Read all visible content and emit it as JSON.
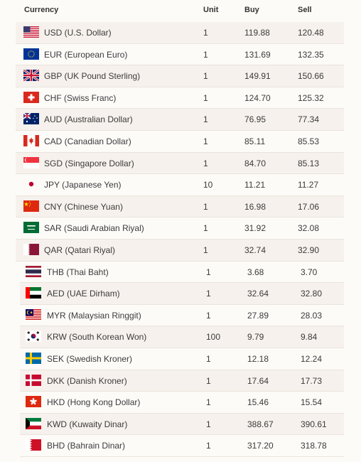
{
  "table": {
    "headers": {
      "currency": "Currency",
      "unit": "Unit",
      "buy": "Buy",
      "sell": "Sell"
    },
    "rows": [
      {
        "flag": "us-flag-icon",
        "name": "USD (U.S. Dollar)",
        "unit": "1",
        "buy": "119.88",
        "sell": "120.48"
      },
      {
        "flag": "eu-flag-icon",
        "name": "EUR (European Euro)",
        "unit": "1",
        "buy": "131.69",
        "sell": "132.35"
      },
      {
        "flag": "gb-flag-icon",
        "name": "GBP (UK Pound Sterling)",
        "unit": "1",
        "buy": "149.91",
        "sell": "150.66"
      },
      {
        "flag": "ch-flag-icon",
        "name": "CHF (Swiss Franc)",
        "unit": "1",
        "buy": "124.70",
        "sell": "125.32"
      },
      {
        "flag": "au-flag-icon",
        "name": "AUD (Australian Dollar)",
        "unit": "1",
        "buy": "76.95",
        "sell": "77.34"
      },
      {
        "flag": "ca-flag-icon",
        "name": "CAD (Canadian Dollar)",
        "unit": "1",
        "buy": "85.11",
        "sell": "85.53"
      },
      {
        "flag": "sg-flag-icon",
        "name": "SGD (Singapore Dollar)",
        "unit": "1",
        "buy": "84.70",
        "sell": "85.13"
      },
      {
        "flag": "jp-flag-icon",
        "name": "JPY (Japanese Yen)",
        "unit": "10",
        "buy": "11.21",
        "sell": "11.27"
      },
      {
        "flag": "cn-flag-icon",
        "name": "CNY (Chinese Yuan)",
        "unit": "1",
        "buy": "16.98",
        "sell": "17.06"
      },
      {
        "flag": "sa-flag-icon",
        "name": "SAR (Saudi Arabian Riyal)",
        "unit": "1",
        "buy": "31.92",
        "sell": "32.08"
      },
      {
        "flag": "qa-flag-icon",
        "name": "QAR (Qatari Riyal)",
        "unit": "1",
        "buy": "32.74",
        "sell": "32.90"
      },
      {
        "flag": "th-flag-icon",
        "name": "THB (Thai Baht)",
        "unit": "1",
        "buy": "3.68",
        "sell": "3.70"
      },
      {
        "flag": "ae-flag-icon",
        "name": "AED (UAE Dirham)",
        "unit": "1",
        "buy": "32.64",
        "sell": "32.80"
      },
      {
        "flag": "my-flag-icon",
        "name": "MYR (Malaysian Ringgit)",
        "unit": "1",
        "buy": "27.89",
        "sell": "28.03"
      },
      {
        "flag": "kr-flag-icon",
        "name": "KRW (South Korean Won)",
        "unit": "100",
        "buy": "9.79",
        "sell": "9.84"
      },
      {
        "flag": "se-flag-icon",
        "name": "SEK (Swedish Kroner)",
        "unit": "1",
        "buy": "12.18",
        "sell": "12.24"
      },
      {
        "flag": "dk-flag-icon",
        "name": "DKK (Danish Kroner)",
        "unit": "1",
        "buy": "17.64",
        "sell": "17.73"
      },
      {
        "flag": "hk-flag-icon",
        "name": "HKD (Hong Kong Dollar)",
        "unit": "1",
        "buy": "15.46",
        "sell": "15.54"
      },
      {
        "flag": "kw-flag-icon",
        "name": "KWD (Kuwaity Dinar)",
        "unit": "1",
        "buy": "388.67",
        "sell": "390.61"
      },
      {
        "flag": "bh-flag-icon",
        "name": "BHD (Bahrain Dinar)",
        "unit": "1",
        "buy": "317.20",
        "sell": "318.78"
      }
    ]
  }
}
